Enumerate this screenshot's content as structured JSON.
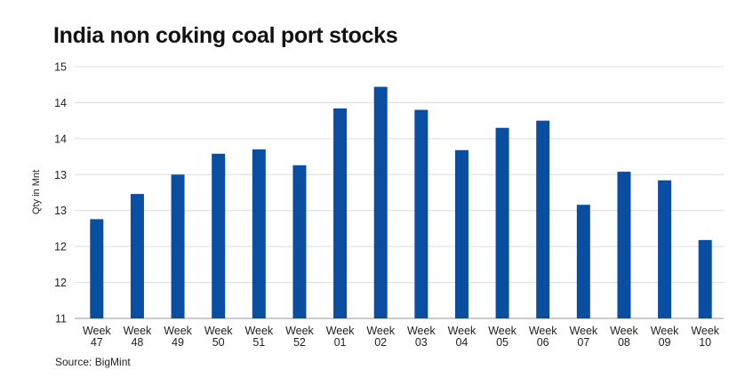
{
  "chart_data": {
    "type": "bar",
    "title": "India non coking coal port stocks",
    "ylabel": "Qty in Mnt",
    "xlabel": "",
    "source": "Source: BigMint",
    "color": "#0a4ea2",
    "grid": true,
    "yticks": [
      "15",
      "14",
      "14",
      "13",
      "13",
      "12",
      "12",
      "11"
    ],
    "ylim": [
      11,
      14.5
    ],
    "categories": [
      [
        "Week",
        "47"
      ],
      [
        "Week",
        "48"
      ],
      [
        "Week",
        "49"
      ],
      [
        "Week",
        "50"
      ],
      [
        "Week",
        "51"
      ],
      [
        "Week",
        "52"
      ],
      [
        "Week",
        "01"
      ],
      [
        "Week",
        "02"
      ],
      [
        "Week",
        "03"
      ],
      [
        "Week",
        "04"
      ],
      [
        "Week",
        "05"
      ],
      [
        "Week",
        "06"
      ],
      [
        "Week",
        "07"
      ],
      [
        "Week",
        "08"
      ],
      [
        "Week",
        "09"
      ],
      [
        "Week",
        "10"
      ]
    ],
    "values": [
      12.38,
      12.73,
      13.0,
      13.29,
      13.35,
      13.13,
      13.92,
      14.22,
      13.9,
      13.34,
      13.65,
      13.75,
      12.58,
      13.04,
      12.92,
      12.09
    ]
  }
}
